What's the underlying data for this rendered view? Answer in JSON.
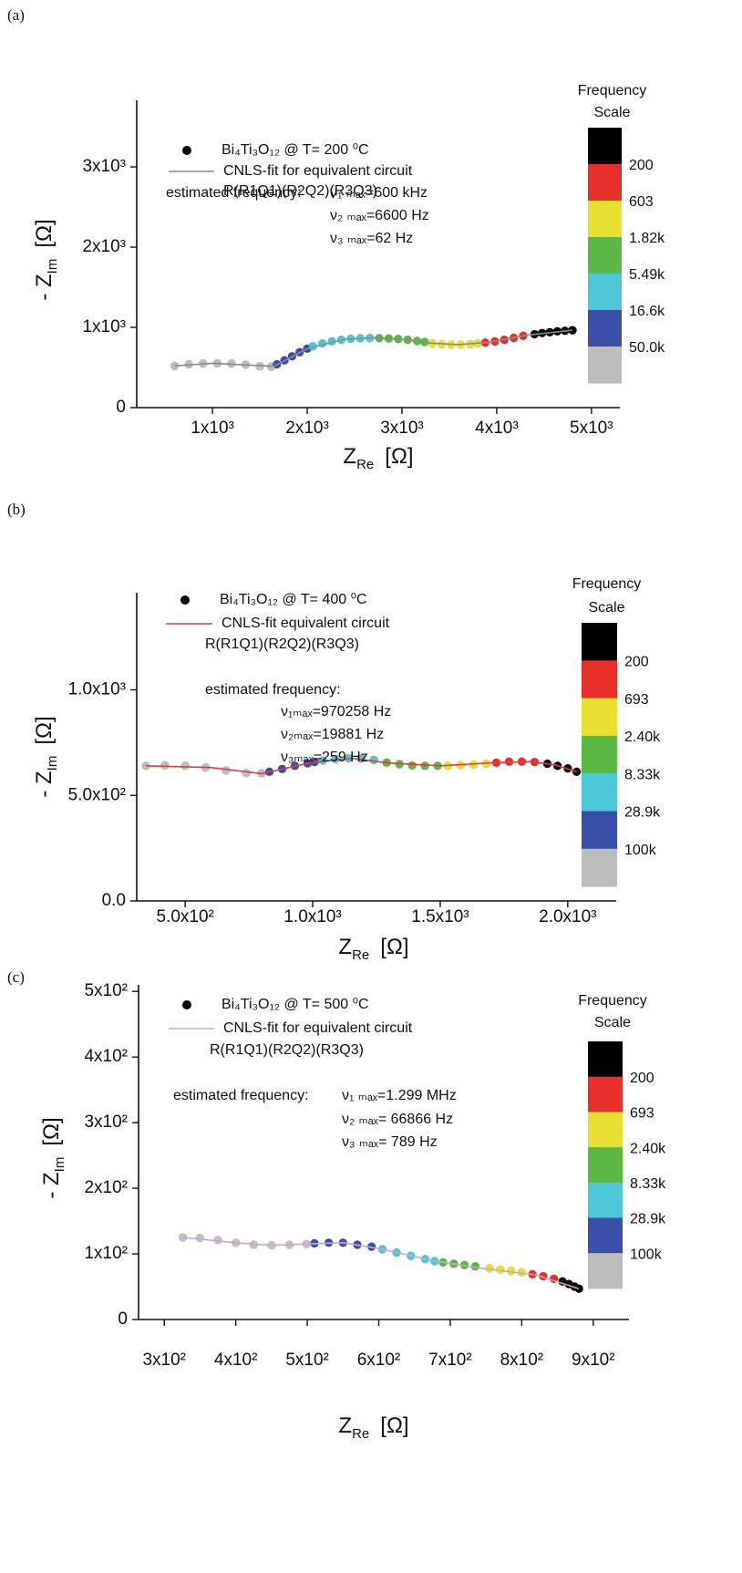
{
  "chart_data": [
    {
      "type": "scatter",
      "panel": "(a)",
      "xlabel": {
        "text": "Z",
        "sub": "Re",
        "unit": "[Ω]"
      },
      "ylabel": {
        "text": "- Z",
        "sub": "Im",
        "unit": "[Ω]"
      },
      "xlim": [
        200,
        5300
      ],
      "ylim": [
        0,
        3830
      ],
      "xticks": [
        {
          "value": 1000,
          "label": "1x10³"
        },
        {
          "value": 2000,
          "label": "2x10³"
        },
        {
          "value": 3000,
          "label": "3x10³"
        },
        {
          "value": 4000,
          "label": "4x10³"
        },
        {
          "value": 5000,
          "label": "5x10³"
        }
      ],
      "yticks": [
        0,
        {
          "value": 1000,
          "label": "1x10³"
        },
        {
          "value": 2000,
          "label": "2x10³"
        },
        {
          "value": 3000,
          "label": "3x10³"
        }
      ],
      "legend": {
        "points": "Bi₄Ti₃O₁₂  @ T= 200 ⁰C",
        "marker_color": "#000000"
      },
      "circuit": "R(R1Q1)(R2Q2)(R3Q3)",
      "estimate": [
        "estimated frequency:",
        "ν₁ ₘₐₓ=600 kHz",
        "ν₂ ₘₐₓ=6600 Hz",
        "ν₃ ₘₐₓ=62 Hz"
      ],
      "series": [
        {
          "color": "#bdbdbd",
          "x": [
            600,
            750,
            900,
            1050,
            1200,
            1350,
            1500,
            1620
          ],
          "y": [
            520,
            540,
            550,
            552,
            548,
            535,
            515,
            510
          ]
        },
        {
          "color": "#3a4fa8",
          "x": [
            1680,
            1760,
            1840,
            1920,
            2000
          ],
          "y": [
            540,
            590,
            640,
            690,
            735
          ]
        },
        {
          "color": "#4dc8d8",
          "x": [
            2060,
            2160,
            2260,
            2360,
            2460,
            2560,
            2660
          ],
          "y": [
            765,
            800,
            825,
            845,
            858,
            865,
            868
          ]
        },
        {
          "color": "#5cb845",
          "x": [
            2760,
            2860,
            2960,
            3060,
            3160,
            3240
          ],
          "y": [
            866,
            862,
            855,
            845,
            830,
            818
          ]
        },
        {
          "color": "#e8e030",
          "x": [
            3320,
            3420,
            3520,
            3620,
            3720,
            3800
          ],
          "y": [
            800,
            790,
            785,
            785,
            792,
            800
          ]
        },
        {
          "color": "#e8302a",
          "x": [
            3880,
            3980,
            4080,
            4180,
            4280
          ],
          "y": [
            810,
            825,
            845,
            870,
            895
          ]
        },
        {
          "color": "#000000",
          "x": [
            4400,
            4480,
            4560,
            4640,
            4720,
            4800
          ],
          "y": [
            915,
            930,
            940,
            950,
            958,
            965
          ]
        }
      ],
      "fit": {
        "name": "CNLS-fit for equivalent circuit",
        "color": "#8c8c8c",
        "x": [
          600,
          1000,
          1400,
          1650,
          2000,
          2400,
          2700,
          3000,
          3300,
          3600,
          3900,
          4300,
          4800
        ],
        "y": [
          520,
          552,
          530,
          515,
          735,
          852,
          868,
          853,
          805,
          785,
          812,
          900,
          965
        ]
      },
      "colorbar": {
        "title": [
          "Frequency",
          "Scale"
        ],
        "colors": [
          "#000000",
          "#e8302a",
          "#e8e030",
          "#5cb845",
          "#4dc8d8",
          "#3a4fa8",
          "#bdbdbd"
        ],
        "labels": [
          "200",
          "603",
          "1.82k",
          "5.49k",
          "16.6k",
          "50.0k"
        ]
      }
    },
    {
      "type": "scatter",
      "panel": "(b)",
      "xlabel": {
        "text": "Z",
        "sub": "Re",
        "unit": "[Ω]"
      },
      "ylabel": {
        "text": "- Z",
        "sub": "Im",
        "unit": "[Ω]"
      },
      "xlim": [
        310,
        2190
      ],
      "ylim": [
        0,
        1460
      ],
      "xticks": [
        {
          "value": 500,
          "label": "5.0x10²"
        },
        {
          "value": 1000,
          "label": "1.0x10³"
        },
        {
          "value": 1500,
          "label": "1.5x10³"
        },
        {
          "value": 2000,
          "label": "2.0x10³"
        }
      ],
      "yticks": [
        {
          "value": 0,
          "label": "0.0"
        },
        {
          "value": 500,
          "label": "5.0x10²"
        },
        {
          "value": 1000,
          "label": "1.0x10³"
        }
      ],
      "legend": {
        "points": "Bi₄Ti₃O₁₂  @ T= 400 ⁰C",
        "marker_color": "#000000"
      },
      "circuit": "R(R1Q1)(R2Q2)(R3Q3)",
      "estimate": [
        "estimated frequency:",
        "ν₁ₘₐₓ=970258 Hz",
        "ν₂ₘₐₓ=19881 Hz",
        "ν₃ₘₐₓ=259 Hz"
      ],
      "series": [
        {
          "color": "#bdbdbd",
          "x": [
            346,
            420,
            500,
            580,
            660,
            740,
            800
          ],
          "y": [
            640,
            642,
            640,
            632,
            618,
            606,
            605
          ]
        },
        {
          "color": "#3a4fa8",
          "x": [
            830,
            880,
            930,
            980,
            1007
          ],
          "y": [
            612,
            625,
            640,
            652,
            658
          ]
        },
        {
          "color": "#4dc8d8",
          "x": [
            1040,
            1090,
            1140,
            1190,
            1240
          ],
          "y": [
            665,
            672,
            676,
            675,
            668
          ]
        },
        {
          "color": "#5cb845",
          "x": [
            1290,
            1340,
            1390,
            1440,
            1490
          ],
          "y": [
            655,
            648,
            642,
            640,
            640
          ]
        },
        {
          "color": "#e8e030",
          "x": [
            1530,
            1580,
            1630,
            1680
          ],
          "y": [
            640,
            643,
            646,
            650
          ]
        },
        {
          "color": "#e8302a",
          "x": [
            1720,
            1770,
            1820,
            1870
          ],
          "y": [
            655,
            660,
            660,
            658
          ]
        },
        {
          "color": "#000000",
          "x": [
            1920,
            1960,
            2000,
            2035
          ],
          "y": [
            650,
            640,
            628,
            612
          ]
        }
      ],
      "fit": {
        "name": "CNLS-fit equivalent circuit",
        "color": "#d84040",
        "x": [
          346,
          600,
          800,
          1000,
          1150,
          1300,
          1500,
          1700,
          1850,
          1950,
          2035
        ],
        "y": [
          640,
          632,
          603,
          657,
          676,
          653,
          640,
          654,
          660,
          645,
          612
        ]
      },
      "colorbar": {
        "title": [
          "Frequency",
          "Scale"
        ],
        "colors": [
          "#000000",
          "#e8302a",
          "#e8e030",
          "#5cb845",
          "#4dc8d8",
          "#3a4fa8",
          "#bdbdbd"
        ],
        "labels": [
          "200",
          "693",
          "2.40k",
          "8.33k",
          "28.9k",
          "100k"
        ]
      }
    },
    {
      "type": "scatter",
      "panel": "(c)",
      "xlabel": {
        "text": "Z",
        "sub": "Re",
        "unit": "[Ω]"
      },
      "ylabel": {
        "text": "- Z",
        "sub": "Im",
        "unit": "[Ω]"
      },
      "xlim": [
        264,
        950
      ],
      "ylim": [
        0,
        510
      ],
      "xticks": [
        {
          "value": 300,
          "label": "3x10²"
        },
        {
          "value": 400,
          "label": "4x10²"
        },
        {
          "value": 500,
          "label": "5x10²"
        },
        {
          "value": 600,
          "label": "6x10²"
        },
        {
          "value": 700,
          "label": "7x10²"
        },
        {
          "value": 800,
          "label": "8x10²"
        },
        {
          "value": 900,
          "label": "9x10²"
        }
      ],
      "yticks": [
        0,
        {
          "value": 100,
          "label": "1x10²"
        },
        {
          "value": 200,
          "label": "2x10²"
        },
        {
          "value": 300,
          "label": "3x10²"
        },
        {
          "value": 400,
          "label": "4x10²"
        },
        {
          "value": 500,
          "label": "5x10²"
        }
      ],
      "legend": {
        "points": "Bi₄Ti₃O₁₂  @ T= 500 ⁰C",
        "marker_color": "#000000"
      },
      "circuit": "R(R1Q1)(R2Q2)(R3Q3)",
      "estimate": [
        "estimated frequency:",
        "ν₁ ₘₐₓ=1.299 MHz",
        "ν₂ ₘₐₓ= 66866 Hz",
        "ν₃ ₘₐₓ=  789 Hz"
      ],
      "series": [
        {
          "color": "#c9bccf",
          "x": [
            326,
            350,
            375,
            400,
            425,
            450,
            475,
            499
          ],
          "y": [
            125,
            124,
            121,
            117,
            114,
            113,
            114,
            115
          ]
        },
        {
          "color": "#3a4fa8",
          "x": [
            510,
            530,
            550,
            570,
            590
          ],
          "y": [
            116,
            117,
            117,
            114,
            111
          ]
        },
        {
          "color": "#4dc8d8",
          "x": [
            605,
            625,
            645,
            665,
            678
          ],
          "y": [
            107,
            102,
            97,
            92,
            89
          ]
        },
        {
          "color": "#5cb845",
          "x": [
            690,
            705,
            720,
            735
          ],
          "y": [
            87,
            85,
            83,
            81
          ]
        },
        {
          "color": "#e8e030",
          "x": [
            755,
            770,
            785,
            800
          ],
          "y": [
            78,
            76,
            74,
            72
          ]
        },
        {
          "color": "#e8302a",
          "x": [
            815,
            830,
            845
          ],
          "y": [
            69,
            66,
            62
          ]
        },
        {
          "color": "#000000",
          "x": [
            857,
            866,
            874,
            880
          ],
          "y": [
            58,
            54,
            50,
            47
          ]
        }
      ],
      "fit": {
        "name": "CNLS-fit for equivalent circuit",
        "color": "#c4a8cc",
        "x": [
          326,
          400,
          450,
          499,
          550,
          600,
          680,
          750,
          820,
          880
        ],
        "y": [
          125,
          117,
          113,
          115,
          117,
          108,
          89,
          77,
          68,
          47
        ]
      },
      "colorbar": {
        "title": [
          "Frequency",
          "Scale"
        ],
        "colors": [
          "#000000",
          "#e8302a",
          "#e8e030",
          "#5cb845",
          "#4dc8d8",
          "#3a4fa8",
          "#bdbdbd"
        ],
        "labels": [
          "200",
          "693",
          "2.40k",
          "8.33k",
          "28.9k",
          "100k"
        ]
      }
    }
  ]
}
